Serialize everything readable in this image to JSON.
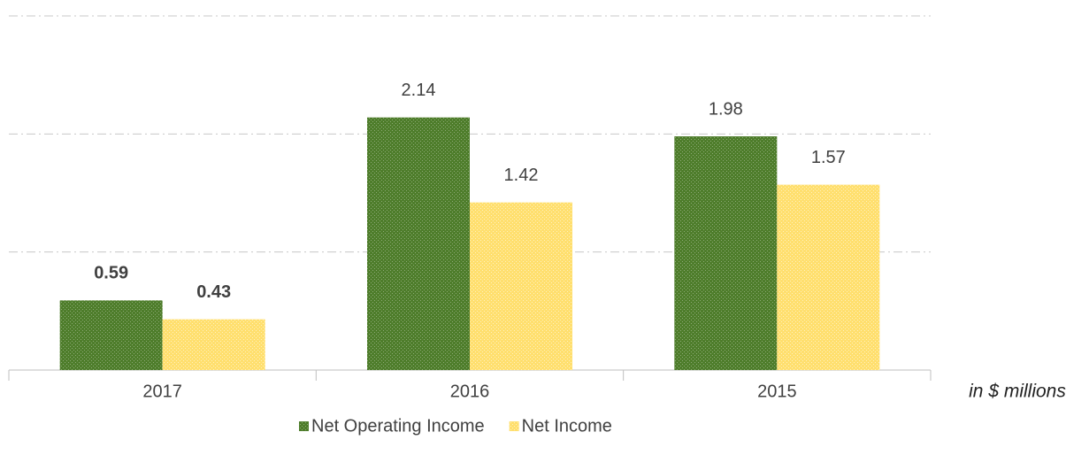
{
  "chart_data": {
    "type": "bar",
    "categories": [
      "2017",
      "2016",
      "2015"
    ],
    "series": [
      {
        "name": "Net Operating Income",
        "color": "#4e7d2b",
        "values": [
          0.59,
          2.14,
          1.98
        ]
      },
      {
        "name": "Net Income",
        "color": "#ffdf6e",
        "values": [
          0.43,
          1.42,
          1.57
        ]
      }
    ],
    "ylim": [
      0,
      3
    ],
    "yticks": [
      0,
      1,
      2,
      3
    ],
    "grid": true,
    "annotation": "in $ millions",
    "legend": "bottom"
  }
}
